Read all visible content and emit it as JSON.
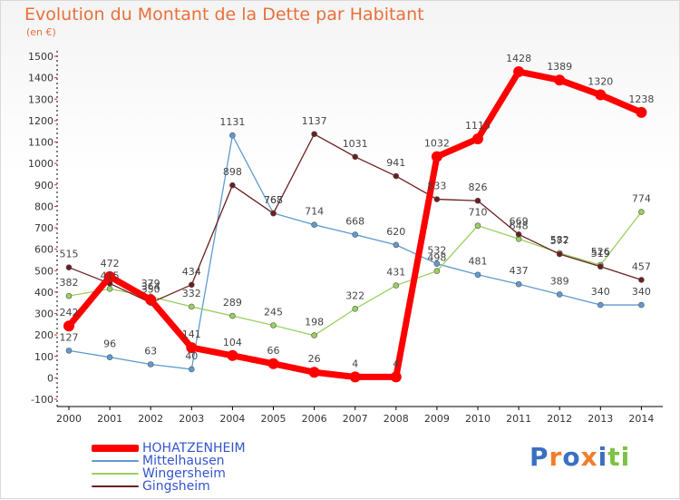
{
  "chart_data": {
    "type": "line",
    "title": "Evolution du Montant de la Dette par Habitant",
    "unit": "(en €)",
    "x": [
      "2000",
      "2001",
      "2002",
      "2003",
      "2004",
      "2005",
      "2006",
      "2007",
      "2008",
      "2009",
      "2010",
      "2011",
      "2012",
      "2013",
      "2014"
    ],
    "ylim": [
      -100,
      1500
    ],
    "yticks": [
      "-100",
      "0",
      "100",
      "200",
      "300",
      "400",
      "500",
      "600",
      "700",
      "800",
      "900",
      "1000",
      "1100",
      "1200",
      "1300",
      "1400",
      "1500"
    ],
    "grid": false,
    "legend_position": "bottom-left",
    "series": [
      {
        "name": "HOHATZENHEIM",
        "color": "#ff0000",
        "values": [
          242,
          472,
          364,
          141,
          104,
          66,
          26,
          4,
          4,
          1032,
          1115,
          1428,
          1389,
          1320,
          1238
        ],
        "labels": [
          "242",
          "472",
          "364",
          "141",
          "104",
          "66",
          "26",
          "4",
          "4",
          "1032",
          "1115",
          "1428",
          "1389",
          "1320",
          "1238"
        ]
      },
      {
        "name": "Mittelhausen",
        "color": "#5f9bd0",
        "values": [
          127,
          96,
          63,
          40,
          1131,
          768,
          714,
          668,
          620,
          532,
          481,
          437,
          389,
          340,
          340
        ],
        "labels": [
          "127",
          "96",
          "63",
          "40",
          "1131",
          "768",
          "714",
          "668",
          "620",
          "532",
          "481",
          "437",
          "389",
          "340",
          "340"
        ]
      },
      {
        "name": "Wingersheim",
        "color": "#99d060",
        "values": [
          382,
          415,
          379,
          332,
          289,
          245,
          198,
          322,
          431,
          498,
          710,
          648,
          582,
          526,
          774
        ],
        "labels": [
          "382",
          "415",
          "379",
          "332",
          "289",
          "245",
          "198",
          "322",
          "431",
          "498",
          "710",
          "648",
          "582",
          "526",
          "774"
        ]
      },
      {
        "name": "Gingsheim",
        "color": "#6b1f1f",
        "values": [
          515,
          440,
          350,
          434,
          898,
          767,
          1137,
          1031,
          941,
          833,
          826,
          669,
          577,
          519,
          457
        ],
        "labels": [
          "515",
          "",
          "350",
          "434",
          "898",
          "767",
          "1137",
          "1031",
          "941",
          "833",
          "826",
          "669",
          "577",
          "519",
          "457"
        ]
      }
    ]
  },
  "logo": {
    "text": "Proxiti",
    "colors": [
      "#3a6fc4",
      "#f07e2a",
      "#3a6fc4",
      "#f07e2a",
      "#3a6fc4",
      "#7dc243",
      "#7dc243"
    ]
  }
}
